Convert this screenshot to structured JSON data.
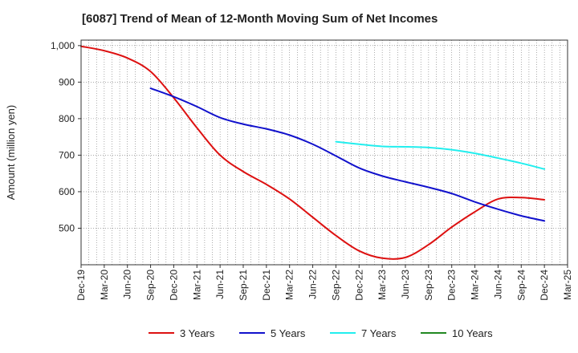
{
  "chart_data": {
    "type": "line",
    "title": "[6087]  Trend of Mean of 12-Month Moving Sum of Net Incomes",
    "ylabel": "Amount (million yen)",
    "xlabel": "",
    "ylim": [
      400,
      1015
    ],
    "yticks": [
      500,
      600,
      700,
      800,
      900,
      1000
    ],
    "ytick_labels": [
      "500",
      "600",
      "700",
      "800",
      "900",
      "1,000"
    ],
    "xtick_labels": [
      "Dec-19",
      "Mar-20",
      "Jun-20",
      "Sep-20",
      "Dec-20",
      "Mar-21",
      "Jun-21",
      "Sep-21",
      "Dec-21",
      "Mar-22",
      "Jun-22",
      "Sep-22",
      "Dec-22",
      "Mar-23",
      "Jun-23",
      "Sep-23",
      "Dec-23",
      "Mar-24",
      "Jun-24",
      "Sep-24",
      "Dec-24",
      "Mar-25"
    ],
    "grid": true,
    "legend_position": "bottom",
    "series": [
      {
        "name": "3 Years",
        "color": "#dd1111",
        "points": [
          [
            "Dec-19",
            998
          ],
          [
            "Mar-20",
            986
          ],
          [
            "Jun-20",
            966
          ],
          [
            "Sep-20",
            929
          ],
          [
            "Dec-20",
            857
          ],
          [
            "Mar-21",
            775
          ],
          [
            "Jun-21",
            700
          ],
          [
            "Sep-21",
            655
          ],
          [
            "Dec-21",
            620
          ],
          [
            "Mar-22",
            580
          ],
          [
            "Jun-22",
            530
          ],
          [
            "Sep-22",
            480
          ],
          [
            "Dec-22",
            438
          ],
          [
            "Mar-23",
            418
          ],
          [
            "Jun-23",
            420
          ],
          [
            "Sep-23",
            455
          ],
          [
            "Dec-23",
            503
          ],
          [
            "Mar-24",
            545
          ],
          [
            "Jun-24",
            580
          ],
          [
            "Sep-24",
            584
          ],
          [
            "Dec-24",
            578
          ]
        ]
      },
      {
        "name": "5 Years",
        "color": "#1111cc",
        "points": [
          [
            "Sep-20",
            883
          ],
          [
            "Dec-20",
            860
          ],
          [
            "Mar-21",
            833
          ],
          [
            "Jun-21",
            803
          ],
          [
            "Sep-21",
            785
          ],
          [
            "Dec-21",
            772
          ],
          [
            "Mar-22",
            755
          ],
          [
            "Jun-22",
            730
          ],
          [
            "Sep-22",
            698
          ],
          [
            "Dec-22",
            665
          ],
          [
            "Mar-23",
            643
          ],
          [
            "Jun-23",
            627
          ],
          [
            "Sep-23",
            612
          ],
          [
            "Dec-23",
            595
          ],
          [
            "Mar-24",
            572
          ],
          [
            "Jun-24",
            552
          ],
          [
            "Sep-24",
            534
          ],
          [
            "Dec-24",
            520
          ]
        ]
      },
      {
        "name": "7 Years",
        "color": "#22eeee",
        "points": [
          [
            "Sep-22",
            737
          ],
          [
            "Dec-22",
            730
          ],
          [
            "Mar-23",
            724
          ],
          [
            "Jun-23",
            723
          ],
          [
            "Sep-23",
            721
          ],
          [
            "Dec-23",
            715
          ],
          [
            "Mar-24",
            705
          ],
          [
            "Jun-24",
            692
          ],
          [
            "Sep-24",
            678
          ],
          [
            "Dec-24",
            662
          ]
        ]
      },
      {
        "name": "10 Years",
        "color": "#228822",
        "points": []
      }
    ]
  }
}
